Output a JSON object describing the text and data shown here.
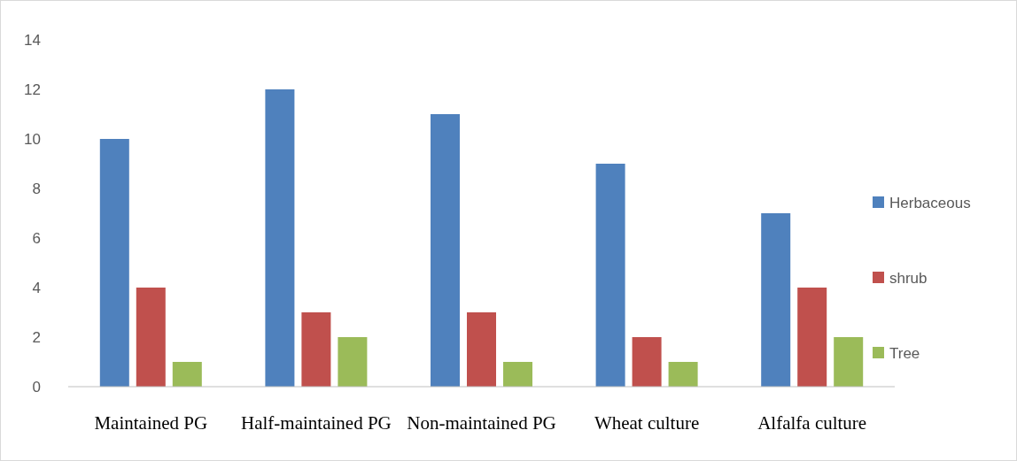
{
  "chart_data": {
    "type": "bar",
    "categories": [
      "Maintained PG",
      "Half-maintained PG",
      "Non-maintained PG",
      "Wheat culture",
      "Alfalfa culture"
    ],
    "series": [
      {
        "name": "Herbaceous",
        "color": "#4f81bd",
        "values": [
          10,
          12,
          11,
          9,
          7
        ]
      },
      {
        "name": "shrub",
        "color": "#c0504d",
        "values": [
          4,
          3,
          3,
          2,
          4
        ]
      },
      {
        "name": "Tree",
        "color": "#9bbb59",
        "values": [
          1,
          2,
          1,
          1,
          2
        ]
      }
    ],
    "ylim": [
      0,
      14
    ],
    "yticks": [
      0,
      2,
      4,
      6,
      8,
      10,
      12,
      14
    ],
    "grid": false,
    "legend": "right"
  }
}
